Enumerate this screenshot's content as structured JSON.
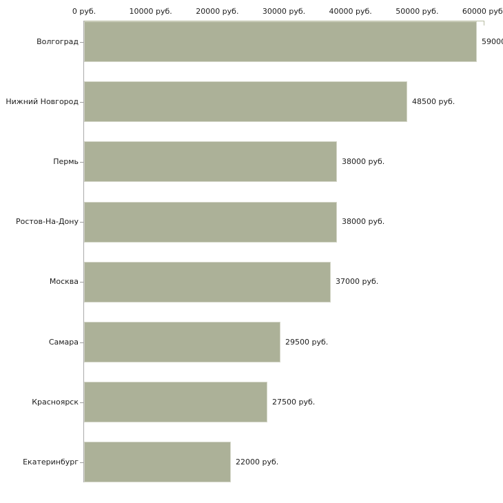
{
  "chart_data": {
    "type": "bar",
    "orientation": "horizontal",
    "categories": [
      "Волгоград",
      "Нижний Новгород",
      "Пермь",
      "Ростов-На-Дону",
      "Москва",
      "Самара",
      "Красноярск",
      "Екатеринбург"
    ],
    "values": [
      59000,
      48500,
      38000,
      38000,
      37000,
      29500,
      27500,
      22000
    ],
    "value_labels": [
      "59000",
      "48500 руб.",
      "38000 руб.",
      "38000 руб.",
      "37000 руб.",
      "29500 руб.",
      "27500 руб.",
      "22000 руб."
    ],
    "x_ticks": [
      0,
      10000,
      20000,
      30000,
      40000,
      50000,
      60000
    ],
    "x_tick_labels": [
      "0 руб.",
      "10000 руб.",
      "20000 руб.",
      "30000 руб.",
      "40000 руб.",
      "50000 руб.",
      "60000 руб."
    ],
    "xlim": [
      0,
      60000
    ],
    "x_axis_position": "top",
    "grid": false,
    "legend": false,
    "colors": {
      "bar_fill": "#acb198",
      "bar_border": "#d4d6c8",
      "y_axis_line": "#a9a9a9",
      "x_axis_line": "#b7bba2",
      "category_tick": "#9a9a9a",
      "text": "#1b1b1b"
    }
  }
}
